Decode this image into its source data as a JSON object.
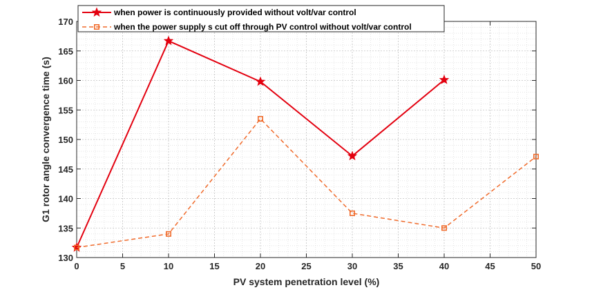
{
  "chart_data": {
    "type": "line",
    "title": "",
    "xlabel": "PV system penetration level (%)",
    "ylabel": "G1 rotor angle convergence time (s)",
    "xlim": [
      0,
      50
    ],
    "ylim": [
      130,
      170
    ],
    "xticks": [
      0,
      5,
      10,
      15,
      20,
      25,
      30,
      35,
      40,
      45,
      50
    ],
    "yticks": [
      130,
      135,
      140,
      145,
      150,
      155,
      160,
      165,
      170
    ],
    "grid": "on (major and minor, dotted)",
    "legend_position": "top",
    "series": [
      {
        "name": "when power is continuously provided without volt/var control",
        "color": "#e3000f",
        "line_style": "solid",
        "marker": "star",
        "x": [
          0,
          10,
          20,
          30,
          40
        ],
        "values": [
          131.7,
          166.7,
          159.8,
          147.2,
          160.1
        ]
      },
      {
        "name": "when the power supply s cut off through PV control without volt/var control",
        "color": "#f06a2a",
        "line_style": "dashed",
        "marker": "square",
        "x": [
          0,
          10,
          20,
          30,
          40,
          50
        ],
        "values": [
          131.7,
          134.0,
          153.5,
          137.5,
          135.0,
          147.1
        ]
      }
    ]
  }
}
